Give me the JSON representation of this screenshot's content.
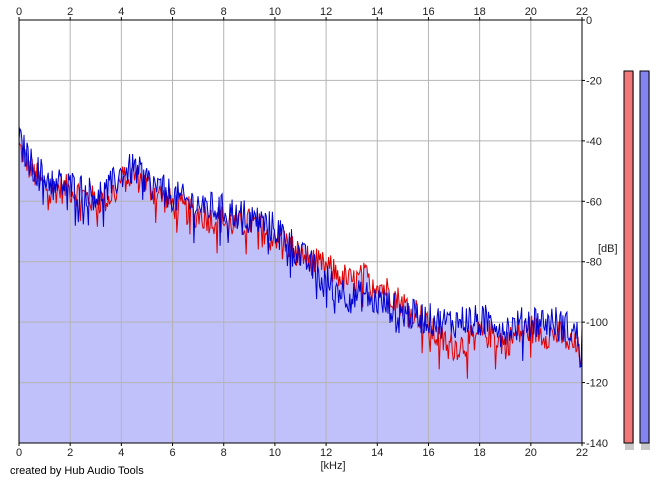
{
  "footer": {
    "credit": "created by Hub Audio Tools"
  },
  "chart_data": {
    "type": "area",
    "title": "",
    "xlabel": "[kHz]",
    "ylabel": "[dB]",
    "xlim": [
      0,
      22
    ],
    "ylim": [
      -140,
      0
    ],
    "x_ticks": [
      0,
      2,
      4,
      6,
      8,
      10,
      12,
      14,
      16,
      18,
      20,
      22
    ],
    "y_ticks": [
      0,
      -20,
      -40,
      -60,
      -80,
      -100,
      -120,
      -140
    ],
    "grid": true,
    "colors": {
      "background": "#ffffff",
      "fill": "#c0c0fa",
      "grid": "#b4b4b4",
      "axis": "#000000"
    },
    "series": [
      {
        "color": "#e00000",
        "x": [
          0,
          0.5,
          1,
          1.5,
          2,
          2.5,
          3,
          3.5,
          4,
          4.5,
          5,
          5.5,
          6,
          6.5,
          7,
          7.5,
          8,
          8.5,
          9,
          9.5,
          10,
          10.5,
          11,
          11.5,
          12,
          12.5,
          13,
          13.5,
          14,
          14.5,
          15,
          15.5,
          16,
          16.5,
          17,
          17.5,
          18,
          18.5,
          19,
          19.5,
          20,
          20.5,
          21,
          21.5,
          22
        ],
        "y": [
          -42,
          -50,
          -55,
          -56,
          -56,
          -58,
          -60,
          -59,
          -53,
          -51,
          -55,
          -58,
          -61,
          -63,
          -64,
          -66,
          -66,
          -68,
          -67,
          -69,
          -71,
          -74,
          -78,
          -80,
          -82,
          -84,
          -87,
          -85,
          -87,
          -90,
          -94,
          -96,
          -102,
          -106,
          -108,
          -107,
          -104,
          -104,
          -107,
          -104,
          -102,
          -104,
          -104,
          -106,
          -111
        ]
      },
      {
        "color": "#0000d0",
        "x": [
          0,
          0.5,
          1,
          1.5,
          2,
          2.5,
          3,
          3.5,
          4,
          4.5,
          5,
          5.5,
          6,
          6.5,
          7,
          7.5,
          8,
          8.5,
          9,
          9.5,
          10,
          10.5,
          11,
          11.5,
          12,
          12.5,
          13,
          13.5,
          14,
          14.5,
          15,
          15.5,
          16,
          16.5,
          17,
          17.5,
          18,
          18.5,
          19,
          19.5,
          20,
          20.5,
          21,
          21.5,
          22
        ],
        "y": [
          -40,
          -48,
          -52,
          -54,
          -55,
          -56,
          -58,
          -56,
          -51,
          -49,
          -53,
          -56,
          -58,
          -60,
          -61,
          -62,
          -63,
          -64,
          -65,
          -67,
          -69,
          -72,
          -78,
          -82,
          -86,
          -89,
          -92,
          -91,
          -93,
          -95,
          -97,
          -98,
          -99,
          -100,
          -100,
          -99,
          -100,
          -99,
          -102,
          -101,
          -99,
          -100,
          -100,
          -102,
          -106
        ]
      }
    ],
    "meters": [
      {
        "channel": "L",
        "color": "#f07878"
      },
      {
        "channel": "R",
        "color": "#8484f0"
      }
    ]
  }
}
